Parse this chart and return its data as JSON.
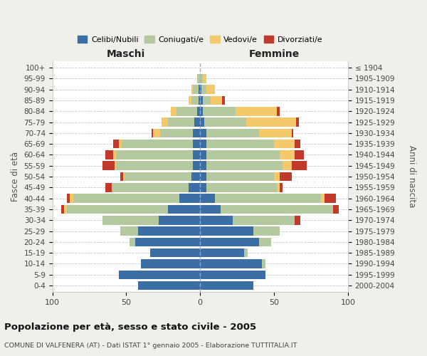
{
  "age_groups": [
    "0-4",
    "5-9",
    "10-14",
    "15-19",
    "20-24",
    "25-29",
    "30-34",
    "35-39",
    "40-44",
    "45-49",
    "50-54",
    "55-59",
    "60-64",
    "65-69",
    "70-74",
    "75-79",
    "80-84",
    "85-89",
    "90-94",
    "95-99",
    "100+"
  ],
  "birth_years": [
    "2000-2004",
    "1995-1999",
    "1990-1994",
    "1985-1989",
    "1980-1984",
    "1975-1979",
    "1970-1974",
    "1965-1969",
    "1960-1964",
    "1955-1959",
    "1950-1954",
    "1945-1949",
    "1940-1944",
    "1935-1939",
    "1930-1934",
    "1925-1929",
    "1920-1924",
    "1915-1919",
    "1910-1914",
    "1905-1909",
    "≤ 1904"
  ],
  "male": {
    "celibi": [
      42,
      55,
      40,
      34,
      44,
      42,
      28,
      22,
      14,
      8,
      6,
      5,
      5,
      5,
      5,
      4,
      2,
      1,
      1,
      0,
      0
    ],
    "coniugati": [
      0,
      0,
      0,
      0,
      4,
      12,
      38,
      68,
      72,
      52,
      45,
      52,
      52,
      48,
      22,
      18,
      14,
      5,
      4,
      2,
      0
    ],
    "vedovi": [
      0,
      0,
      0,
      0,
      0,
      0,
      0,
      2,
      2,
      0,
      1,
      1,
      2,
      2,
      5,
      4,
      4,
      2,
      1,
      0,
      0
    ],
    "divorziati": [
      0,
      0,
      0,
      0,
      0,
      0,
      0,
      2,
      2,
      4,
      2,
      8,
      5,
      4,
      1,
      0,
      0,
      0,
      0,
      0,
      0
    ]
  },
  "female": {
    "nubili": [
      36,
      44,
      42,
      30,
      40,
      36,
      22,
      14,
      10,
      4,
      4,
      4,
      4,
      4,
      4,
      3,
      2,
      2,
      1,
      0,
      0
    ],
    "coniugate": [
      0,
      0,
      2,
      2,
      8,
      18,
      42,
      76,
      72,
      48,
      46,
      52,
      50,
      46,
      36,
      28,
      22,
      5,
      3,
      2,
      0
    ],
    "vedove": [
      0,
      0,
      0,
      0,
      0,
      0,
      0,
      0,
      2,
      2,
      4,
      6,
      10,
      14,
      22,
      34,
      28,
      8,
      6,
      2,
      0
    ],
    "divorziate": [
      0,
      0,
      0,
      0,
      0,
      0,
      4,
      4,
      8,
      2,
      8,
      10,
      6,
      4,
      1,
      2,
      2,
      2,
      0,
      0,
      0
    ]
  },
  "colors": {
    "celibi": "#3a6ea5",
    "coniugati": "#b5c9a0",
    "vedovi": "#f5c96a",
    "divorziati": "#c0392b"
  },
  "xlim": 100,
  "title": "Popolazione per età, sesso e stato civile - 2005",
  "subtitle": "COMUNE DI VALFENERA (AT) - Dati ISTAT 1° gennaio 2005 - Elaborazione TUTTITALIA.IT",
  "ylabel_left": "Fasce di età",
  "ylabel_right": "Anni di nascita",
  "xlabel_left": "Maschi",
  "xlabel_right": "Femmine",
  "bg_color": "#f0f0eb",
  "plot_bg": "#ffffff"
}
